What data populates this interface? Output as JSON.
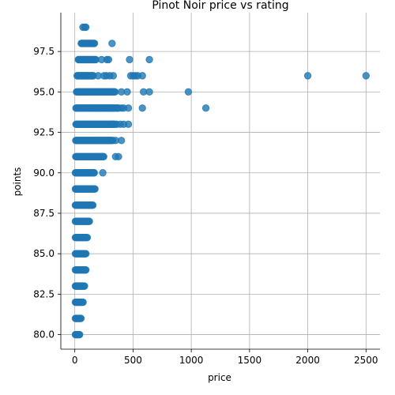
{
  "chart_data": {
    "type": "scatter",
    "title": "Pinot Noir price vs rating",
    "xlabel": "price",
    "ylabel": "points",
    "xlim": [
      -120,
      2620
    ],
    "ylim": [
      79.1,
      99.9
    ],
    "xticks": [
      0,
      500,
      1000,
      1500,
      2000,
      2500
    ],
    "yticks": [
      80.0,
      82.5,
      85.0,
      87.5,
      90.0,
      92.5,
      95.0,
      97.5
    ],
    "xtick_labels": [
      "0",
      "500",
      "1000",
      "1500",
      "2000",
      "2500"
    ],
    "ytick_labels": [
      "80.0",
      "82.5",
      "85.0",
      "87.5",
      "90.0",
      "92.5",
      "95.0",
      "97.5"
    ],
    "grid": true,
    "color": "#1f77b4",
    "clusters": [
      {
        "y": 80,
        "xmin": 5,
        "xmax": 45
      },
      {
        "y": 81,
        "xmin": 5,
        "xmax": 55
      },
      {
        "y": 82,
        "xmin": 5,
        "xmax": 75
      },
      {
        "y": 83,
        "xmin": 5,
        "xmax": 85
      },
      {
        "y": 84,
        "xmin": 5,
        "xmax": 95
      },
      {
        "y": 85,
        "xmin": 5,
        "xmax": 95
      },
      {
        "y": 86,
        "xmin": 5,
        "xmax": 110
      },
      {
        "y": 87,
        "xmin": 5,
        "xmax": 130
      },
      {
        "y": 88,
        "xmin": 5,
        "xmax": 160
      },
      {
        "y": 89,
        "xmin": 5,
        "xmax": 175
      },
      {
        "y": 90,
        "xmin": 5,
        "xmax": 170
      },
      {
        "y": 91,
        "xmin": 8,
        "xmax": 250
      },
      {
        "y": 92,
        "xmin": 8,
        "xmax": 330
      },
      {
        "y": 93,
        "xmin": 10,
        "xmax": 350
      },
      {
        "y": 94,
        "xmin": 10,
        "xmax": 380
      },
      {
        "y": 95,
        "xmin": 15,
        "xmax": 350
      },
      {
        "y": 96,
        "xmin": 20,
        "xmax": 160
      },
      {
        "y": 97,
        "xmin": 30,
        "xmax": 180
      },
      {
        "y": 98,
        "xmin": 55,
        "xmax": 170
      }
    ],
    "points": [
      {
        "x": 70,
        "y": 99
      },
      {
        "x": 85,
        "y": 99
      },
      {
        "x": 95,
        "y": 99
      },
      {
        "x": 320,
        "y": 98
      },
      {
        "x": 230,
        "y": 97
      },
      {
        "x": 275,
        "y": 97
      },
      {
        "x": 290,
        "y": 97
      },
      {
        "x": 470,
        "y": 97
      },
      {
        "x": 640,
        "y": 97
      },
      {
        "x": 200,
        "y": 96
      },
      {
        "x": 250,
        "y": 96
      },
      {
        "x": 270,
        "y": 96
      },
      {
        "x": 300,
        "y": 96
      },
      {
        "x": 330,
        "y": 96
      },
      {
        "x": 480,
        "y": 96
      },
      {
        "x": 500,
        "y": 96
      },
      {
        "x": 520,
        "y": 96
      },
      {
        "x": 540,
        "y": 96
      },
      {
        "x": 580,
        "y": 96
      },
      {
        "x": 2000,
        "y": 96
      },
      {
        "x": 2500,
        "y": 96
      },
      {
        "x": 400,
        "y": 95
      },
      {
        "x": 450,
        "y": 95
      },
      {
        "x": 590,
        "y": 95
      },
      {
        "x": 640,
        "y": 95
      },
      {
        "x": 975,
        "y": 95
      },
      {
        "x": 400,
        "y": 94
      },
      {
        "x": 420,
        "y": 94
      },
      {
        "x": 460,
        "y": 94
      },
      {
        "x": 580,
        "y": 94
      },
      {
        "x": 1125,
        "y": 94
      },
      {
        "x": 330,
        "y": 93
      },
      {
        "x": 360,
        "y": 93
      },
      {
        "x": 390,
        "y": 93
      },
      {
        "x": 420,
        "y": 93
      },
      {
        "x": 460,
        "y": 93
      },
      {
        "x": 280,
        "y": 92
      },
      {
        "x": 300,
        "y": 92
      },
      {
        "x": 350,
        "y": 92
      },
      {
        "x": 400,
        "y": 92
      },
      {
        "x": 240,
        "y": 91
      },
      {
        "x": 350,
        "y": 91
      },
      {
        "x": 375,
        "y": 91
      },
      {
        "x": 240,
        "y": 90
      }
    ]
  }
}
